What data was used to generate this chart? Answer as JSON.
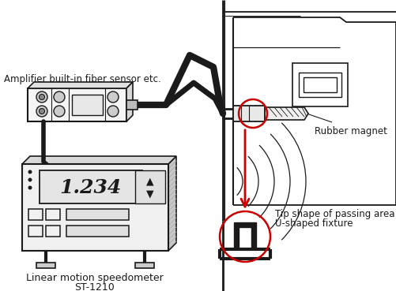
{
  "bg_color": "#ffffff",
  "text_color": "#1a1a1a",
  "red_color": "#cc0000",
  "labels": {
    "amplifier": "Amplifier built-in fiber sensor etc.",
    "rubber_magnet": "Rubber magnet",
    "tip_shape_line1": "Tip shape of passing area",
    "tip_shape_line2": "U-shaped fixture",
    "speedometer_line1": "Linear motion speedometer",
    "speedometer_line2": "ST-1210"
  },
  "figsize": [
    5.01,
    3.69
  ],
  "dpi": 100
}
